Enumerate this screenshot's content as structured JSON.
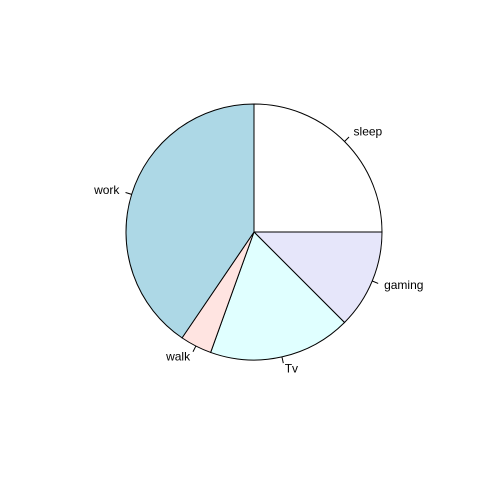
{
  "chart_data": {
    "type": "pie",
    "title": "",
    "slices": [
      {
        "label": "sleep",
        "value": 25,
        "color": "#ffffff"
      },
      {
        "label": "gaming",
        "value": 12.5,
        "color": "#e6e6fa"
      },
      {
        "label": "Tv",
        "value": 18,
        "color": "#e0ffff"
      },
      {
        "label": "walk",
        "value": 4,
        "color": "#ffe4e1"
      },
      {
        "label": "work",
        "value": 40.5,
        "color": "#add8e6"
      }
    ],
    "start_angle": "12 o'clock",
    "direction": "clockwise",
    "legend": "none (labels beside slices)"
  }
}
